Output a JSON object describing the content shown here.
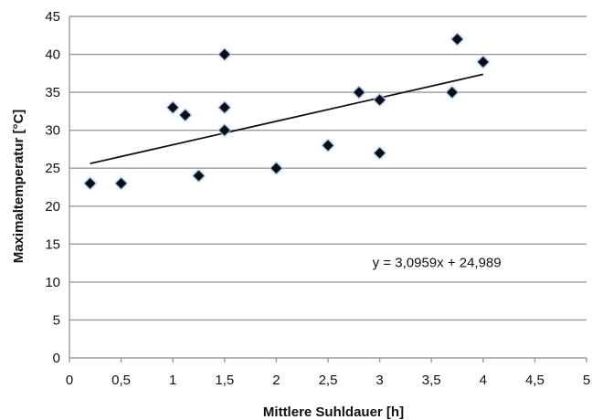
{
  "chart_data": {
    "type": "scatter",
    "xlabel": "Mittlere Suhldauer [h]",
    "ylabel": "Maximaltemperatur [°C]",
    "xlim": [
      0,
      5
    ],
    "ylim": [
      0,
      45
    ],
    "x_ticks": [
      "0",
      "0,5",
      "1",
      "1,5",
      "2",
      "2,5",
      "3",
      "3,5",
      "4",
      "4,5",
      "5"
    ],
    "y_ticks": [
      "0",
      "5",
      "10",
      "15",
      "20",
      "25",
      "30",
      "35",
      "40",
      "45"
    ],
    "grid": "horizontal",
    "colors": {
      "marker": "#0d0d1a",
      "marker_glow": "#9dbfe3",
      "trendline": "#111111",
      "grid": "#9a9a9a"
    },
    "series": [
      {
        "points": [
          {
            "x": 0.2,
            "y": 23
          },
          {
            "x": 0.5,
            "y": 23
          },
          {
            "x": 1.0,
            "y": 33
          },
          {
            "x": 1.12,
            "y": 32
          },
          {
            "x": 1.25,
            "y": 24
          },
          {
            "x": 1.5,
            "y": 40
          },
          {
            "x": 1.5,
            "y": 33
          },
          {
            "x": 1.5,
            "y": 30
          },
          {
            "x": 2.0,
            "y": 25
          },
          {
            "x": 2.5,
            "y": 28
          },
          {
            "x": 2.8,
            "y": 35
          },
          {
            "x": 3.0,
            "y": 34
          },
          {
            "x": 3.0,
            "y": 27
          },
          {
            "x": 3.7,
            "y": 35
          },
          {
            "x": 3.75,
            "y": 42
          },
          {
            "x": 4.0,
            "y": 39
          }
        ]
      }
    ],
    "trendline": {
      "slope": 3.0959,
      "intercept": 24.989,
      "x_range": [
        0.2,
        4.0
      ],
      "equation_label": "y = 3,0959x + 24,989",
      "label_anchor": {
        "x": 2.93,
        "y": 12
      }
    }
  }
}
